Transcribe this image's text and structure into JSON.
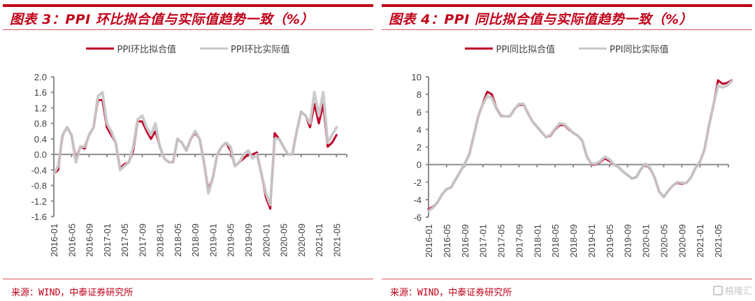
{
  "chart_data": [
    {
      "type": "line",
      "title": "图表 3：PPI 环比拟合值与实际值趋势一致（%）",
      "xlabel": "",
      "ylabel": "",
      "ylim": [
        -1.6,
        2.0
      ],
      "yticks": [
        "2.0",
        "1.6",
        "1.2",
        "0.8",
        "0.4",
        "0.0",
        "-0.4",
        "-0.8",
        "-1.2",
        "-1.6"
      ],
      "ytick_values": [
        2.0,
        1.6,
        1.2,
        0.8,
        0.4,
        0.0,
        -0.4,
        -0.8,
        -1.2,
        -1.6
      ],
      "xticks": [
        "2016-01",
        "2016-05",
        "2016-09",
        "2017-01",
        "2017-05",
        "2017-09",
        "2018-01",
        "2018-05",
        "2018-09",
        "2019-01",
        "2019-05",
        "2019-09",
        "2020-01",
        "2020-05",
        "2020-09",
        "2021-01",
        "2021-05"
      ],
      "x_start": "2016-01",
      "grid": false,
      "legend": "top-center",
      "source": "来源：WIND，中泰证券研究所",
      "series": [
        {
          "name": "PPI环比拟合值",
          "color": "#c00028",
          "values": [
            -0.5,
            -0.4,
            0.5,
            0.7,
            0.5,
            -0.1,
            0.2,
            0.15,
            0.5,
            0.7,
            1.4,
            1.4,
            0.7,
            0.5,
            0.3,
            -0.35,
            -0.25,
            -0.2,
            0.1,
            0.85,
            0.85,
            0.6,
            0.4,
            0.6,
            0.2,
            -0.1,
            -0.2,
            -0.2,
            0.4,
            0.3,
            0.1,
            0.4,
            0.55,
            0.4,
            -0.2,
            -0.9,
            -0.6,
            0.0,
            0.2,
            0.3,
            0.1,
            -0.3,
            -0.2,
            -0.1,
            0.0,
            0.0,
            0.05,
            -0.5,
            -1.1,
            -1.4,
            0.55,
            0.4,
            0.2,
            0.0,
            0.0,
            0.6,
            1.1,
            1.0,
            0.7,
            1.3,
            0.8,
            1.3,
            0.2,
            0.3,
            0.5
          ]
        },
        {
          "name": "PPI环比实际值",
          "color": "#c8c8c8",
          "values": [
            -0.5,
            -0.3,
            0.5,
            0.7,
            0.5,
            -0.2,
            0.2,
            0.2,
            0.5,
            0.7,
            1.5,
            1.6,
            0.8,
            0.6,
            0.3,
            -0.4,
            -0.3,
            -0.2,
            0.2,
            0.9,
            1.0,
            0.7,
            0.5,
            0.8,
            0.2,
            -0.1,
            -0.2,
            -0.2,
            0.4,
            0.3,
            0.1,
            0.4,
            0.6,
            0.4,
            -0.2,
            -1.0,
            -0.6,
            0.0,
            0.2,
            0.3,
            0.2,
            -0.3,
            -0.2,
            0.0,
            0.1,
            -0.1,
            0.0,
            -0.5,
            -1.0,
            -1.3,
            0.4,
            0.4,
            0.2,
            0.0,
            0.0,
            0.6,
            1.1,
            1.0,
            0.8,
            1.6,
            1.0,
            1.6,
            0.3,
            0.5,
            0.7
          ]
        }
      ]
    },
    {
      "type": "line",
      "title": "图表 4：PPI 同比拟合值与实际值趋势一致（%）",
      "xlabel": "",
      "ylabel": "",
      "ylim": [
        -6,
        10
      ],
      "yticks": [
        "10",
        "8",
        "6",
        "4",
        "2",
        "0",
        "-2",
        "-4",
        "-6"
      ],
      "ytick_values": [
        10,
        8,
        6,
        4,
        2,
        0,
        -2,
        -4,
        -6
      ],
      "xticks": [
        "2016-01",
        "2016-05",
        "2016-09",
        "2017-01",
        "2017-05",
        "2017-09",
        "2018-01",
        "2018-05",
        "2018-09",
        "2019-01",
        "2019-05",
        "2019-09",
        "2020-01",
        "2020-05",
        "2020-09",
        "2021-01",
        "2021-05"
      ],
      "x_start": "2016-01",
      "grid": false,
      "legend": "top-center",
      "source": "来源：WIND，中泰证券研究所",
      "series": [
        {
          "name": "PPI同比拟合值",
          "color": "#c00028",
          "values": [
            -5.1,
            -4.8,
            -4.3,
            -3.4,
            -2.8,
            -2.6,
            -1.7,
            -0.8,
            0.1,
            1.2,
            3.3,
            5.5,
            7.0,
            8.3,
            8.0,
            6.5,
            5.6,
            5.5,
            5.5,
            6.3,
            6.8,
            6.8,
            5.9,
            4.9,
            4.3,
            3.7,
            3.1,
            3.3,
            4.0,
            4.5,
            4.5,
            4.0,
            3.6,
            3.3,
            2.7,
            1.0,
            0.0,
            0.0,
            0.3,
            0.7,
            0.4,
            0.0,
            -0.3,
            -0.8,
            -1.2,
            -1.6,
            -1.4,
            -0.5,
            0.0,
            -0.5,
            -1.5,
            -3.1,
            -3.7,
            -3.0,
            -2.4,
            -2.1,
            -2.2,
            -2.1,
            -1.5,
            -0.4,
            0.3,
            1.7,
            4.4,
            6.8,
            9.6,
            9.2,
            9.3,
            9.6
          ]
        },
        {
          "name": "PPI同比实际值",
          "color": "#c8c8c8",
          "values": [
            -5.3,
            -4.9,
            -4.3,
            -3.4,
            -2.8,
            -2.6,
            -1.7,
            -0.8,
            0.1,
            1.1,
            3.3,
            5.5,
            6.9,
            7.8,
            7.6,
            6.4,
            5.5,
            5.5,
            5.5,
            6.3,
            6.9,
            6.9,
            5.8,
            4.9,
            4.3,
            3.7,
            3.1,
            3.4,
            4.1,
            4.7,
            4.6,
            4.1,
            3.6,
            3.3,
            2.7,
            0.9,
            0.1,
            0.1,
            0.4,
            0.9,
            0.6,
            0.0,
            -0.3,
            -0.8,
            -1.2,
            -1.6,
            -1.4,
            -0.5,
            0.1,
            -0.4,
            -1.5,
            -3.1,
            -3.7,
            -3.0,
            -2.4,
            -2.0,
            -2.1,
            -2.1,
            -1.5,
            -0.4,
            0.3,
            1.7,
            4.4,
            6.8,
            9.0,
            8.8,
            9.0,
            9.5
          ]
        }
      ]
    }
  ],
  "watermark": "格隆汇"
}
